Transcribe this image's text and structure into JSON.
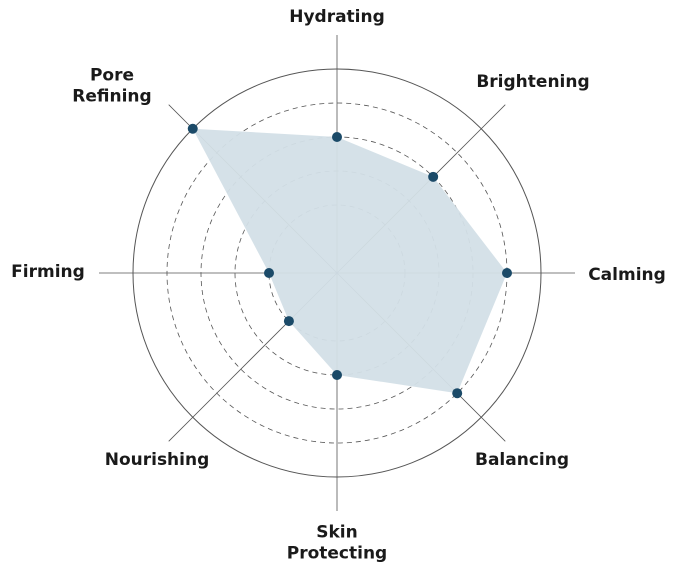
{
  "chart_data": {
    "type": "radar",
    "categories": [
      "Hydrating",
      "Brightening",
      "Calming",
      "Balancing",
      "Skin Protecting",
      "Nourishing",
      "Firming",
      "Pore Refining"
    ],
    "values": [
      4,
      4,
      5,
      5,
      3,
      2,
      2,
      6
    ],
    "color": "#1b4a68",
    "fill": "#d3dfe7",
    "rlim": [
      0,
      6
    ],
    "rticks": [
      2,
      3,
      4,
      5,
      6
    ],
    "grid": true
  }
}
